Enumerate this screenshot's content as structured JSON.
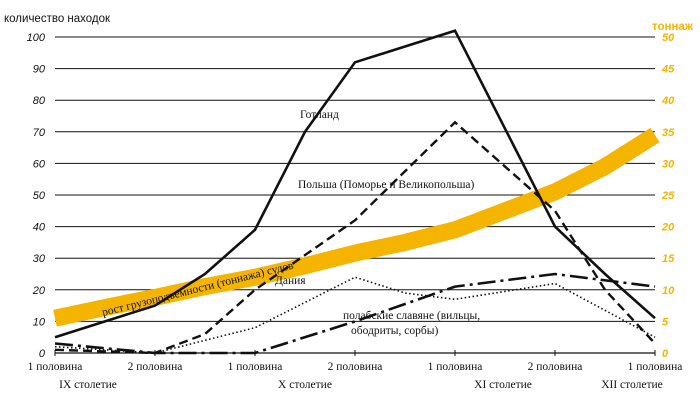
{
  "chart_data": {
    "type": "line",
    "ylabel": "количество находок",
    "y2label": "тоннаж",
    "ylim": [
      0,
      100
    ],
    "y2lim": [
      0,
      50
    ],
    "yticks": [
      0,
      10,
      20,
      30,
      40,
      50,
      60,
      70,
      80,
      90,
      100
    ],
    "y2ticks": [
      0,
      5,
      10,
      15,
      20,
      25,
      30,
      35,
      40,
      45,
      50
    ],
    "grid": true,
    "accent_color": "#f5b400",
    "x_categories": [
      "1 половина",
      "2 половина",
      "1 половина",
      "2 половина",
      "1 половина",
      "2 половина",
      "1 половина"
    ],
    "centuries": [
      "IX столетие",
      "X столетие",
      "XI столетие",
      "XII столетие"
    ],
    "series": [
      {
        "name": "Готланд",
        "style": "solid",
        "x": [
          0,
          0.5,
          1,
          1.5,
          2,
          2.5,
          3,
          3.5,
          4,
          4.5,
          5,
          5.5,
          6
        ],
        "y": [
          5,
          10,
          15,
          25,
          39,
          70,
          92,
          97,
          102,
          71,
          40,
          25,
          11
        ]
      },
      {
        "name": "Польша (Поморье и Великопольша)",
        "style": "dashed",
        "x": [
          0,
          1,
          1.5,
          2,
          3,
          4,
          5,
          5.5,
          6
        ],
        "y": [
          1,
          0,
          6,
          20,
          42,
          73,
          45,
          20,
          3
        ]
      },
      {
        "name": "Дания",
        "style": "dotted",
        "x": [
          0,
          1,
          2,
          3,
          3.5,
          4,
          5,
          6
        ],
        "y": [
          2,
          0,
          8,
          24,
          19,
          17,
          22,
          5
        ]
      },
      {
        "name": "полабские славяне (вильцы, ободриты, сорбы)",
        "style": "dashdot",
        "x": [
          0,
          1,
          2,
          3,
          4,
          5,
          6
        ],
        "y": [
          3,
          0,
          0,
          10,
          21,
          25,
          21
        ]
      },
      {
        "name": "рост грузоподъемности (тоннажа) судов",
        "style": "band",
        "axis": "right",
        "x": [
          0,
          0.5,
          1,
          1.5,
          2,
          2.5,
          3,
          3.5,
          4,
          4.5,
          5,
          5.5,
          6
        ],
        "y": [
          5.5,
          7.2,
          8.8,
          10.5,
          12,
          13.8,
          15.8,
          17.5,
          19.5,
          22.5,
          25.5,
          29.5,
          34.5
        ]
      }
    ]
  }
}
